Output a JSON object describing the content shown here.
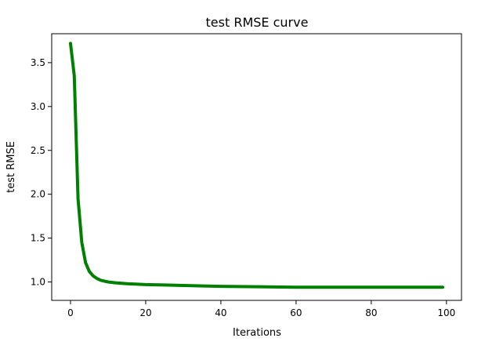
{
  "chart_data": {
    "type": "line",
    "title": "test RMSE curve",
    "xlabel": "Iterations",
    "ylabel": "test RMSE",
    "xlim": [
      -5,
      104
    ],
    "ylim": [
      0.79,
      3.83
    ],
    "grid": false,
    "x_ticks": [
      0,
      20,
      40,
      60,
      80,
      100
    ],
    "y_ticks": [
      1.0,
      1.5,
      2.0,
      2.5,
      3.0,
      3.5
    ],
    "x_tick_labels": [
      "0",
      "20",
      "40",
      "60",
      "80",
      "100"
    ],
    "y_tick_labels": [
      "1.0",
      "1.5",
      "2.0",
      "2.5",
      "3.0",
      "3.5"
    ],
    "series": [
      {
        "color": "#008000",
        "x": [
          0,
          1,
          2,
          3,
          4,
          5,
          6,
          7,
          8,
          9,
          10,
          12,
          15,
          20,
          25,
          30,
          40,
          50,
          60,
          70,
          80,
          90,
          99
        ],
        "y": [
          3.72,
          3.35,
          1.95,
          1.45,
          1.22,
          1.12,
          1.07,
          1.04,
          1.02,
          1.01,
          1.0,
          0.99,
          0.98,
          0.97,
          0.965,
          0.96,
          0.95,
          0.945,
          0.94,
          0.94,
          0.94,
          0.94,
          0.94
        ]
      }
    ]
  }
}
